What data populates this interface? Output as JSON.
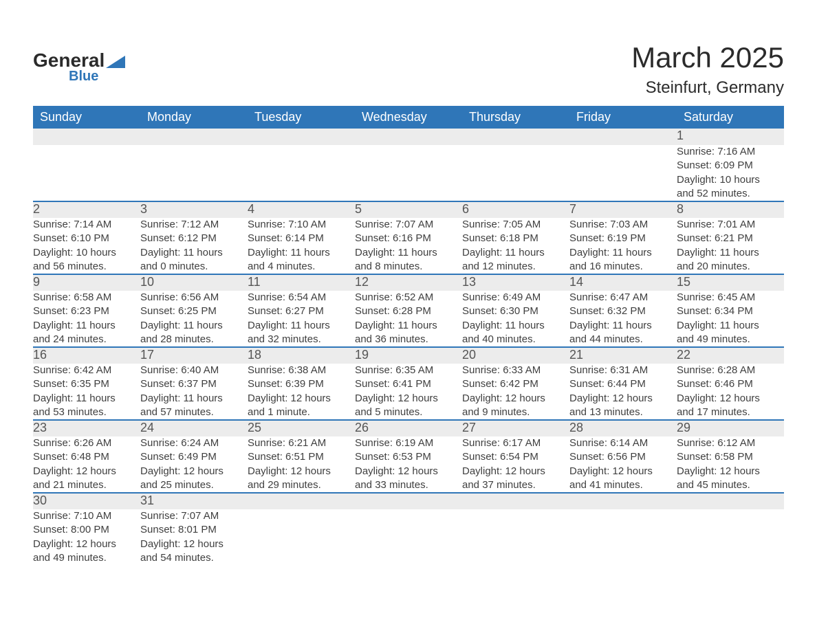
{
  "brand": {
    "name_a": "General",
    "name_b": "Blue"
  },
  "header": {
    "month_title": "March 2025",
    "location": "Steinfurt, Germany"
  },
  "weekdays": [
    "Sunday",
    "Monday",
    "Tuesday",
    "Wednesday",
    "Thursday",
    "Friday",
    "Saturday"
  ],
  "colors": {
    "header_bg": "#2f76b8",
    "header_fg": "#ffffff",
    "daynum_bg": "#ececec",
    "row_border": "#2f76b8",
    "text": "#3a3a3a",
    "background": "#ffffff"
  },
  "weeks": [
    [
      null,
      null,
      null,
      null,
      null,
      null,
      {
        "day": "1",
        "sunrise": "Sunrise: 7:16 AM",
        "sunset": "Sunset: 6:09 PM",
        "daylight1": "Daylight: 10 hours",
        "daylight2": "and 52 minutes."
      }
    ],
    [
      {
        "day": "2",
        "sunrise": "Sunrise: 7:14 AM",
        "sunset": "Sunset: 6:10 PM",
        "daylight1": "Daylight: 10 hours",
        "daylight2": "and 56 minutes."
      },
      {
        "day": "3",
        "sunrise": "Sunrise: 7:12 AM",
        "sunset": "Sunset: 6:12 PM",
        "daylight1": "Daylight: 11 hours",
        "daylight2": "and 0 minutes."
      },
      {
        "day": "4",
        "sunrise": "Sunrise: 7:10 AM",
        "sunset": "Sunset: 6:14 PM",
        "daylight1": "Daylight: 11 hours",
        "daylight2": "and 4 minutes."
      },
      {
        "day": "5",
        "sunrise": "Sunrise: 7:07 AM",
        "sunset": "Sunset: 6:16 PM",
        "daylight1": "Daylight: 11 hours",
        "daylight2": "and 8 minutes."
      },
      {
        "day": "6",
        "sunrise": "Sunrise: 7:05 AM",
        "sunset": "Sunset: 6:18 PM",
        "daylight1": "Daylight: 11 hours",
        "daylight2": "and 12 minutes."
      },
      {
        "day": "7",
        "sunrise": "Sunrise: 7:03 AM",
        "sunset": "Sunset: 6:19 PM",
        "daylight1": "Daylight: 11 hours",
        "daylight2": "and 16 minutes."
      },
      {
        "day": "8",
        "sunrise": "Sunrise: 7:01 AM",
        "sunset": "Sunset: 6:21 PM",
        "daylight1": "Daylight: 11 hours",
        "daylight2": "and 20 minutes."
      }
    ],
    [
      {
        "day": "9",
        "sunrise": "Sunrise: 6:58 AM",
        "sunset": "Sunset: 6:23 PM",
        "daylight1": "Daylight: 11 hours",
        "daylight2": "and 24 minutes."
      },
      {
        "day": "10",
        "sunrise": "Sunrise: 6:56 AM",
        "sunset": "Sunset: 6:25 PM",
        "daylight1": "Daylight: 11 hours",
        "daylight2": "and 28 minutes."
      },
      {
        "day": "11",
        "sunrise": "Sunrise: 6:54 AM",
        "sunset": "Sunset: 6:27 PM",
        "daylight1": "Daylight: 11 hours",
        "daylight2": "and 32 minutes."
      },
      {
        "day": "12",
        "sunrise": "Sunrise: 6:52 AM",
        "sunset": "Sunset: 6:28 PM",
        "daylight1": "Daylight: 11 hours",
        "daylight2": "and 36 minutes."
      },
      {
        "day": "13",
        "sunrise": "Sunrise: 6:49 AM",
        "sunset": "Sunset: 6:30 PM",
        "daylight1": "Daylight: 11 hours",
        "daylight2": "and 40 minutes."
      },
      {
        "day": "14",
        "sunrise": "Sunrise: 6:47 AM",
        "sunset": "Sunset: 6:32 PM",
        "daylight1": "Daylight: 11 hours",
        "daylight2": "and 44 minutes."
      },
      {
        "day": "15",
        "sunrise": "Sunrise: 6:45 AM",
        "sunset": "Sunset: 6:34 PM",
        "daylight1": "Daylight: 11 hours",
        "daylight2": "and 49 minutes."
      }
    ],
    [
      {
        "day": "16",
        "sunrise": "Sunrise: 6:42 AM",
        "sunset": "Sunset: 6:35 PM",
        "daylight1": "Daylight: 11 hours",
        "daylight2": "and 53 minutes."
      },
      {
        "day": "17",
        "sunrise": "Sunrise: 6:40 AM",
        "sunset": "Sunset: 6:37 PM",
        "daylight1": "Daylight: 11 hours",
        "daylight2": "and 57 minutes."
      },
      {
        "day": "18",
        "sunrise": "Sunrise: 6:38 AM",
        "sunset": "Sunset: 6:39 PM",
        "daylight1": "Daylight: 12 hours",
        "daylight2": "and 1 minute."
      },
      {
        "day": "19",
        "sunrise": "Sunrise: 6:35 AM",
        "sunset": "Sunset: 6:41 PM",
        "daylight1": "Daylight: 12 hours",
        "daylight2": "and 5 minutes."
      },
      {
        "day": "20",
        "sunrise": "Sunrise: 6:33 AM",
        "sunset": "Sunset: 6:42 PM",
        "daylight1": "Daylight: 12 hours",
        "daylight2": "and 9 minutes."
      },
      {
        "day": "21",
        "sunrise": "Sunrise: 6:31 AM",
        "sunset": "Sunset: 6:44 PM",
        "daylight1": "Daylight: 12 hours",
        "daylight2": "and 13 minutes."
      },
      {
        "day": "22",
        "sunrise": "Sunrise: 6:28 AM",
        "sunset": "Sunset: 6:46 PM",
        "daylight1": "Daylight: 12 hours",
        "daylight2": "and 17 minutes."
      }
    ],
    [
      {
        "day": "23",
        "sunrise": "Sunrise: 6:26 AM",
        "sunset": "Sunset: 6:48 PM",
        "daylight1": "Daylight: 12 hours",
        "daylight2": "and 21 minutes."
      },
      {
        "day": "24",
        "sunrise": "Sunrise: 6:24 AM",
        "sunset": "Sunset: 6:49 PM",
        "daylight1": "Daylight: 12 hours",
        "daylight2": "and 25 minutes."
      },
      {
        "day": "25",
        "sunrise": "Sunrise: 6:21 AM",
        "sunset": "Sunset: 6:51 PM",
        "daylight1": "Daylight: 12 hours",
        "daylight2": "and 29 minutes."
      },
      {
        "day": "26",
        "sunrise": "Sunrise: 6:19 AM",
        "sunset": "Sunset: 6:53 PM",
        "daylight1": "Daylight: 12 hours",
        "daylight2": "and 33 minutes."
      },
      {
        "day": "27",
        "sunrise": "Sunrise: 6:17 AM",
        "sunset": "Sunset: 6:54 PM",
        "daylight1": "Daylight: 12 hours",
        "daylight2": "and 37 minutes."
      },
      {
        "day": "28",
        "sunrise": "Sunrise: 6:14 AM",
        "sunset": "Sunset: 6:56 PM",
        "daylight1": "Daylight: 12 hours",
        "daylight2": "and 41 minutes."
      },
      {
        "day": "29",
        "sunrise": "Sunrise: 6:12 AM",
        "sunset": "Sunset: 6:58 PM",
        "daylight1": "Daylight: 12 hours",
        "daylight2": "and 45 minutes."
      }
    ],
    [
      {
        "day": "30",
        "sunrise": "Sunrise: 7:10 AM",
        "sunset": "Sunset: 8:00 PM",
        "daylight1": "Daylight: 12 hours",
        "daylight2": "and 49 minutes."
      },
      {
        "day": "31",
        "sunrise": "Sunrise: 7:07 AM",
        "sunset": "Sunset: 8:01 PM",
        "daylight1": "Daylight: 12 hours",
        "daylight2": "and 54 minutes."
      },
      null,
      null,
      null,
      null,
      null
    ]
  ]
}
